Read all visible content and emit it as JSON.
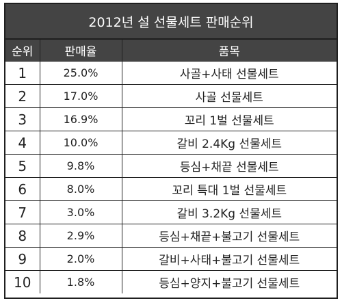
{
  "title": "2012년 설 선물세트 판매순위",
  "headers": {
    "rank": "순위",
    "rate": "판매율",
    "item": "품목"
  },
  "rows": [
    {
      "rank": "1",
      "rate": "25.0%",
      "item": "사골+사태 선물세트"
    },
    {
      "rank": "2",
      "rate": "17.0%",
      "item": "사골 선물세트"
    },
    {
      "rank": "3",
      "rate": "16.9%",
      "item": "꼬리 1벌 선물세트"
    },
    {
      "rank": "4",
      "rate": "10.0%",
      "item": "갈비 2.4Kg 선물세트"
    },
    {
      "rank": "5",
      "rate": "9.8%",
      "item": "등심+채끝 선물세트"
    },
    {
      "rank": "6",
      "rate": "8.0%",
      "item": "꼬리 특대 1벌 선물세트"
    },
    {
      "rank": "7",
      "rate": "3.0%",
      "item": "갈비 3.2Kg 선물세트"
    },
    {
      "rank": "8",
      "rate": "2.9%",
      "item": "등심+채끝+불고기 선물세트"
    },
    {
      "rank": "9",
      "rate": "2.0%",
      "item": "갈비+사태+불고기 선물세트"
    },
    {
      "rank": "10",
      "rate": "1.8%",
      "item": "등심+양지+불고기 선물세트"
    }
  ]
}
